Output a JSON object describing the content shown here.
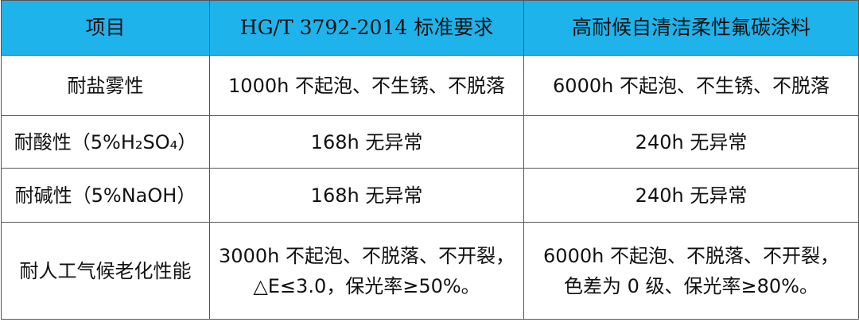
{
  "table": {
    "header": [
      "项目",
      "HG/T 3792-2014 标准要求",
      "高耐候自清洁柔性氟碳涂料"
    ],
    "rows": [
      [
        [
          "耐盐雾性"
        ],
        [
          "1000h 不起泡、不生锈、不脱落"
        ],
        [
          "6000h 不起泡、不生锈、不脱落"
        ]
      ],
      [
        [
          "耐酸性（5%H₂SO₄）"
        ],
        [
          "168h 无异常"
        ],
        [
          "240h 无异常"
        ]
      ],
      [
        [
          "耐碱性（5%NaOH）"
        ],
        [
          "168h 无异常"
        ],
        [
          "240h 无异常"
        ]
      ],
      [
        [
          "耐人工气候老化性能"
        ],
        [
          "3000h 不起泡、不脱落、不开裂，",
          "△E≤3.0，保光率≥50%。"
        ],
        [
          "6000h 不起泡、不脱落、不开裂，",
          "色差为 0 级、保光率≥80%。"
        ]
      ]
    ]
  }
}
